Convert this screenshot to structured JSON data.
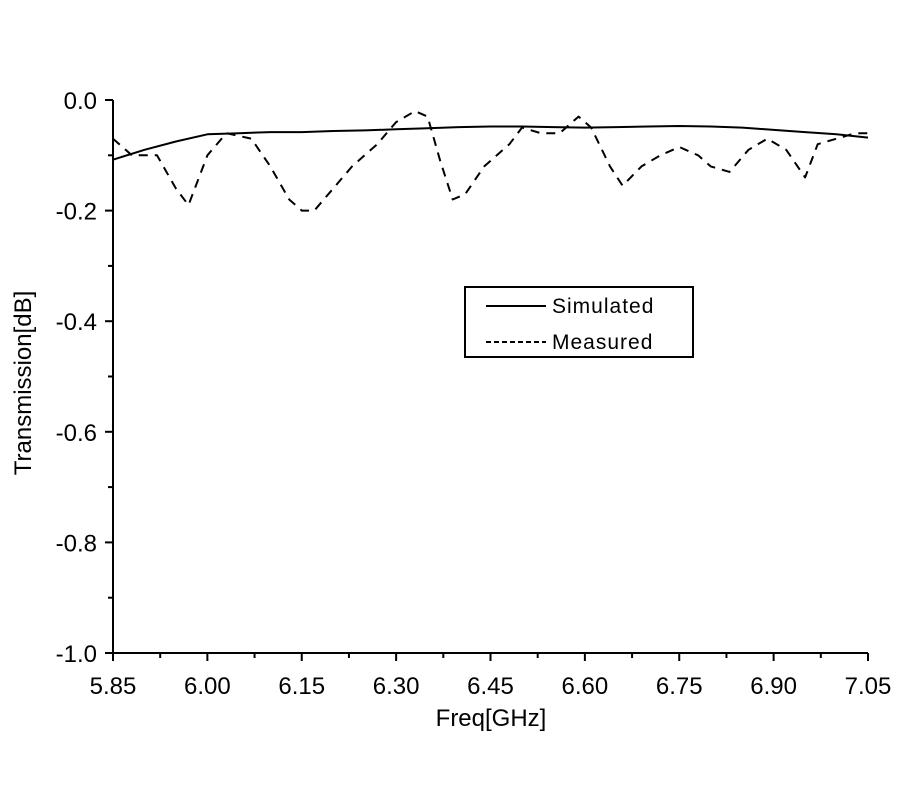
{
  "chart_data": {
    "type": "line",
    "title": "",
    "xlabel": "Freq[GHz]",
    "ylabel": "Transmission[dB]",
    "xlim": [
      5.85,
      7.05
    ],
    "ylim": [
      -1.0,
      0.0
    ],
    "x_ticks": [
      "5.85",
      "6.00",
      "6.15",
      "6.30",
      "6.45",
      "6.60",
      "6.75",
      "6.90",
      "7.05"
    ],
    "y_ticks": [
      "0.0",
      "-0.2",
      "-0.4",
      "-0.6",
      "-0.8",
      "-1.0"
    ],
    "grid": false,
    "legend_position": "center-right",
    "series": [
      {
        "name": "Simulated",
        "style": "solid",
        "color": "#000000",
        "x": [
          5.85,
          5.9,
          5.95,
          6.0,
          6.05,
          6.1,
          6.15,
          6.2,
          6.25,
          6.3,
          6.35,
          6.4,
          6.45,
          6.5,
          6.55,
          6.6,
          6.65,
          6.7,
          6.75,
          6.8,
          6.85,
          6.9,
          6.95,
          7.0,
          7.05
        ],
        "y": [
          -0.108,
          -0.09,
          -0.075,
          -0.062,
          -0.06,
          -0.058,
          -0.058,
          -0.056,
          -0.055,
          -0.053,
          -0.051,
          -0.049,
          -0.048,
          -0.048,
          -0.049,
          -0.05,
          -0.049,
          -0.048,
          -0.047,
          -0.048,
          -0.05,
          -0.054,
          -0.058,
          -0.062,
          -0.068
        ]
      },
      {
        "name": "Measured",
        "style": "dashed",
        "color": "#000000",
        "x": [
          5.85,
          5.88,
          5.92,
          5.95,
          5.97,
          6.0,
          6.03,
          6.07,
          6.1,
          6.13,
          6.15,
          6.17,
          6.2,
          6.23,
          6.27,
          6.3,
          6.33,
          6.35,
          6.37,
          6.39,
          6.41,
          6.44,
          6.48,
          6.5,
          6.53,
          6.56,
          6.59,
          6.61,
          6.64,
          6.66,
          6.69,
          6.72,
          6.75,
          6.78,
          6.8,
          6.83,
          6.86,
          6.89,
          6.92,
          6.95,
          6.97,
          7.0,
          7.03,
          7.05
        ],
        "y": [
          -0.07,
          -0.1,
          -0.1,
          -0.16,
          -0.19,
          -0.1,
          -0.06,
          -0.07,
          -0.12,
          -0.18,
          -0.2,
          -0.2,
          -0.16,
          -0.12,
          -0.08,
          -0.04,
          -0.02,
          -0.03,
          -0.11,
          -0.18,
          -0.17,
          -0.12,
          -0.08,
          -0.05,
          -0.06,
          -0.06,
          -0.03,
          -0.05,
          -0.12,
          -0.155,
          -0.12,
          -0.1,
          -0.085,
          -0.1,
          -0.12,
          -0.13,
          -0.09,
          -0.07,
          -0.09,
          -0.14,
          -0.08,
          -0.07,
          -0.06,
          -0.06
        ]
      }
    ]
  }
}
